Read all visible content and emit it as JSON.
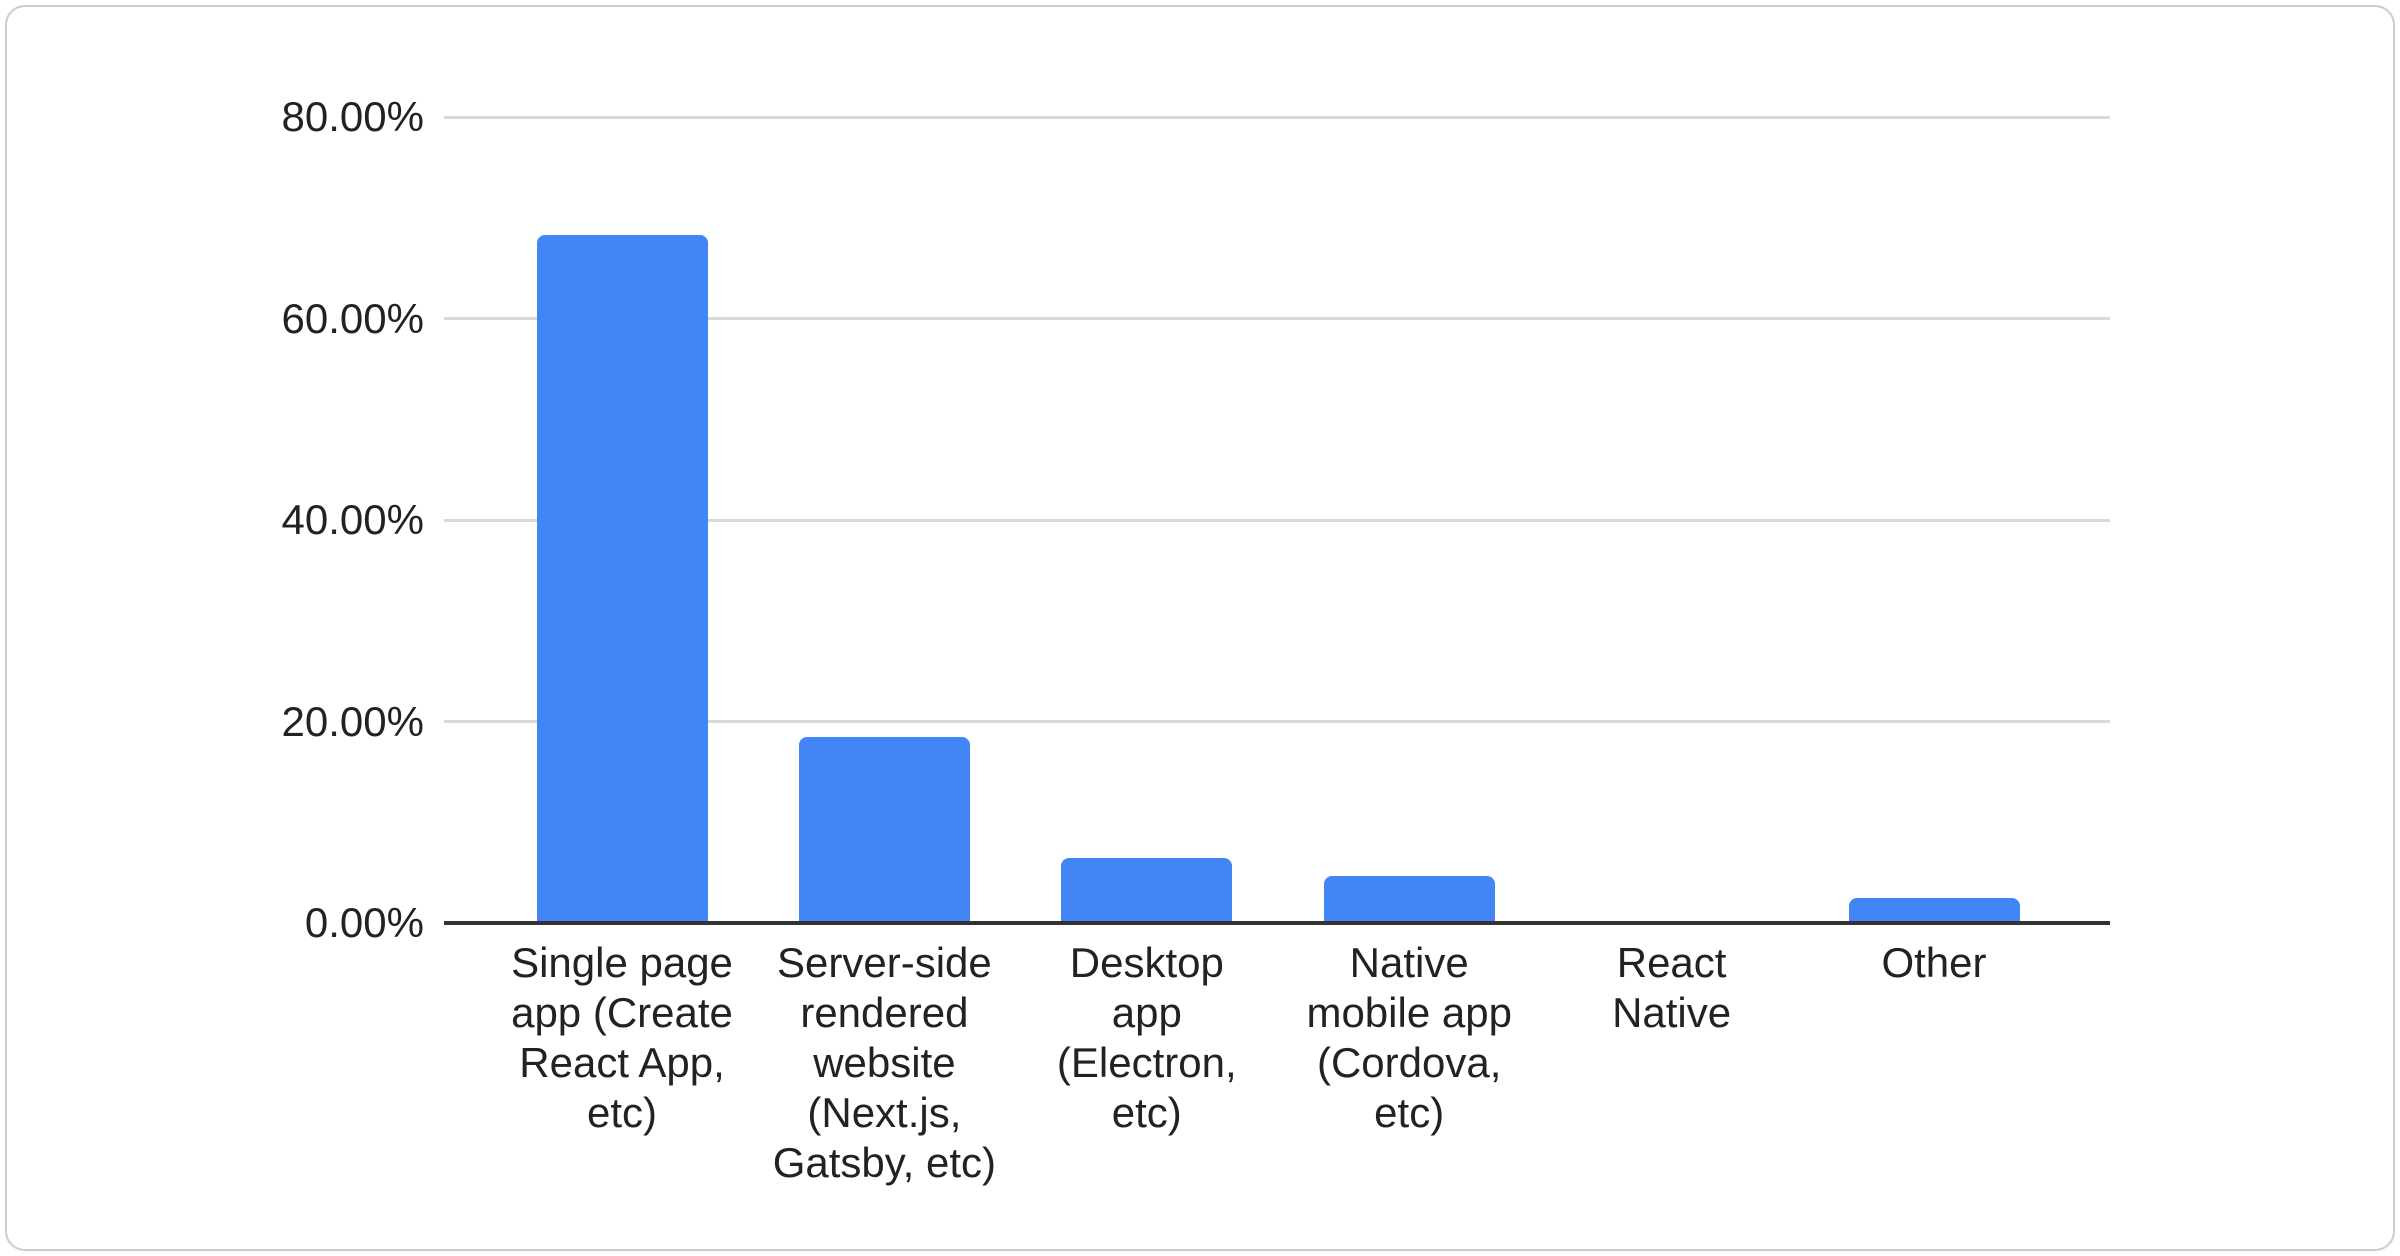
{
  "card": {
    "background": "#ffffff",
    "border_color": "#c9ccd2"
  },
  "chart_data": {
    "type": "bar",
    "title": "",
    "xlabel": "",
    "ylabel": "",
    "grid": true,
    "legend": false,
    "ylim": [
      0,
      80
    ],
    "categories": [
      "Single page app (Create React App, etc)",
      "Server-side rendered website (Next.js, Gatsby, etc)",
      "Desktop app (Electron, etc)",
      "Native mobile app (Cordova, etc)",
      "React Native",
      "Other"
    ],
    "category_labels_wrapped": [
      "Single page\napp (Create\nReact App,\netc)",
      "Server-side\nrendered\nwebsite\n(Next.js,\nGatsby, etc)",
      "Desktop\napp\n(Electron,\netc)",
      "Native\nmobile app\n(Cordova,\netc)",
      "React\nNative",
      "Other"
    ],
    "values": [
      68.3,
      18.5,
      6.5,
      4.7,
      0,
      2.5
    ],
    "value_unit": "%",
    "y_ticks": [
      {
        "label": "80.00%",
        "value": 80
      },
      {
        "label": "60.00%",
        "value": 60
      },
      {
        "label": "40.00%",
        "value": 40
      },
      {
        "label": "20.00%",
        "value": 20
      },
      {
        "label": "0.00%",
        "value": 0
      }
    ],
    "colors": {
      "bar": "#4285f4",
      "grid": "#d9d9d9",
      "axis": "#333333",
      "label": "#222222"
    }
  }
}
